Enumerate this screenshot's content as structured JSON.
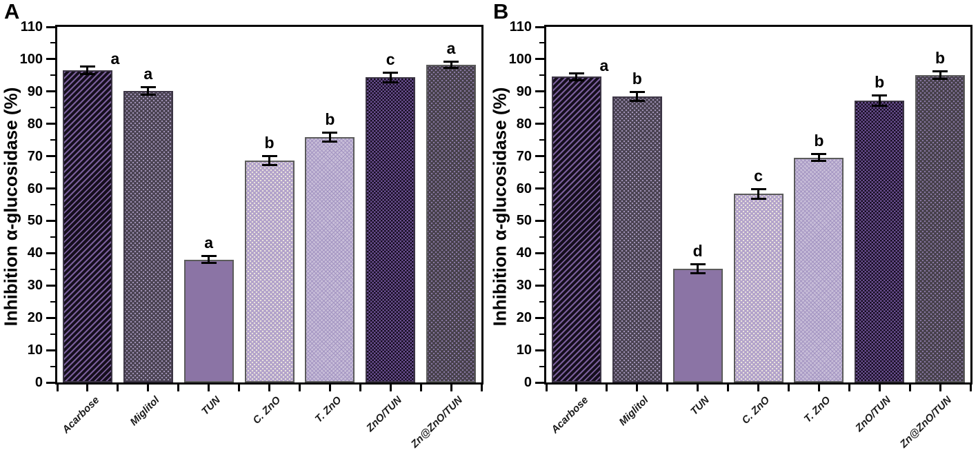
{
  "figure": {
    "panels": [
      {
        "id": "A",
        "label": "A"
      },
      {
        "id": "B",
        "label": "B"
      }
    ]
  },
  "chart_data": [
    {
      "type": "bar",
      "panel": "A",
      "title": "",
      "xlabel": "",
      "ylabel": "Inhibition α-glucosidase (%)",
      "categories": [
        "Acarbose",
        "Miglitol",
        "TUN",
        "C. ZnO",
        "T. ZnO",
        "ZnO/TUN",
        "Zn@ZnO/TUN"
      ],
      "values": [
        96.5,
        90.2,
        38.0,
        68.7,
        75.8,
        94.4,
        98.3
      ],
      "errors": [
        1.3,
        1.2,
        1.2,
        1.5,
        1.5,
        1.6,
        1.1
      ],
      "sig_letters": [
        "a",
        "a",
        "a",
        "b",
        "b",
        "c",
        "a"
      ],
      "ylim": [
        0,
        110
      ],
      "ytick_step": 10,
      "yminor_step": 5,
      "grid": false,
      "legend": "none"
    },
    {
      "type": "bar",
      "panel": "B",
      "title": "",
      "xlabel": "",
      "ylabel": "Inhibition α-glucosidase (%)",
      "categories": [
        "Acarbose",
        "Miglitol",
        "TUN",
        "C. ZnO",
        "T. ZnO",
        "ZnO/TUN",
        "Zn@ZnO/TUN"
      ],
      "values": [
        94.6,
        88.5,
        35.2,
        58.4,
        69.6,
        87.2,
        95.0
      ],
      "errors": [
        1.2,
        1.5,
        1.5,
        1.6,
        1.2,
        1.7,
        1.3
      ],
      "sig_letters": [
        "a",
        "b",
        "d",
        "c",
        "b",
        "b",
        "b"
      ],
      "ylim": [
        0,
        110
      ],
      "ytick_step": 10,
      "yminor_step": 5,
      "grid": false,
      "legend": "none"
    }
  ],
  "bar_styles": [
    {
      "category": "Acarbose",
      "pattern": "diagonal-stripes",
      "bg": "#150e1d",
      "fg": "#7a5f9b",
      "border": "#3c3545"
    },
    {
      "category": "Miglitol",
      "pattern": "dots",
      "bg": "#494251",
      "fg": "#a294b8",
      "border": "#3c3545"
    },
    {
      "category": "TUN",
      "pattern": "solid",
      "bg": "#8b74a5",
      "fg": "#8b74a5",
      "border": "#5b5b5b"
    },
    {
      "category": "C. ZnO",
      "pattern": "dots",
      "bg": "#b2a2ca",
      "fg": "#ece6dc",
      "border": "#5b5b5b"
    },
    {
      "category": "T. ZnO",
      "pattern": "zigzag",
      "bg": "#c8bed8",
      "fg": "#a293c1",
      "border": "#5b5b5b"
    },
    {
      "category": "ZnO/TUN",
      "pattern": "checker",
      "bg": "#140c1e",
      "fg": "#6b4f92",
      "border": "#3c3545"
    },
    {
      "category": "Zn@ZnO/TUN",
      "pattern": "dots",
      "bg": "#46404a",
      "fg": "#8a7aa5",
      "border": "#5b5b5b"
    }
  ]
}
